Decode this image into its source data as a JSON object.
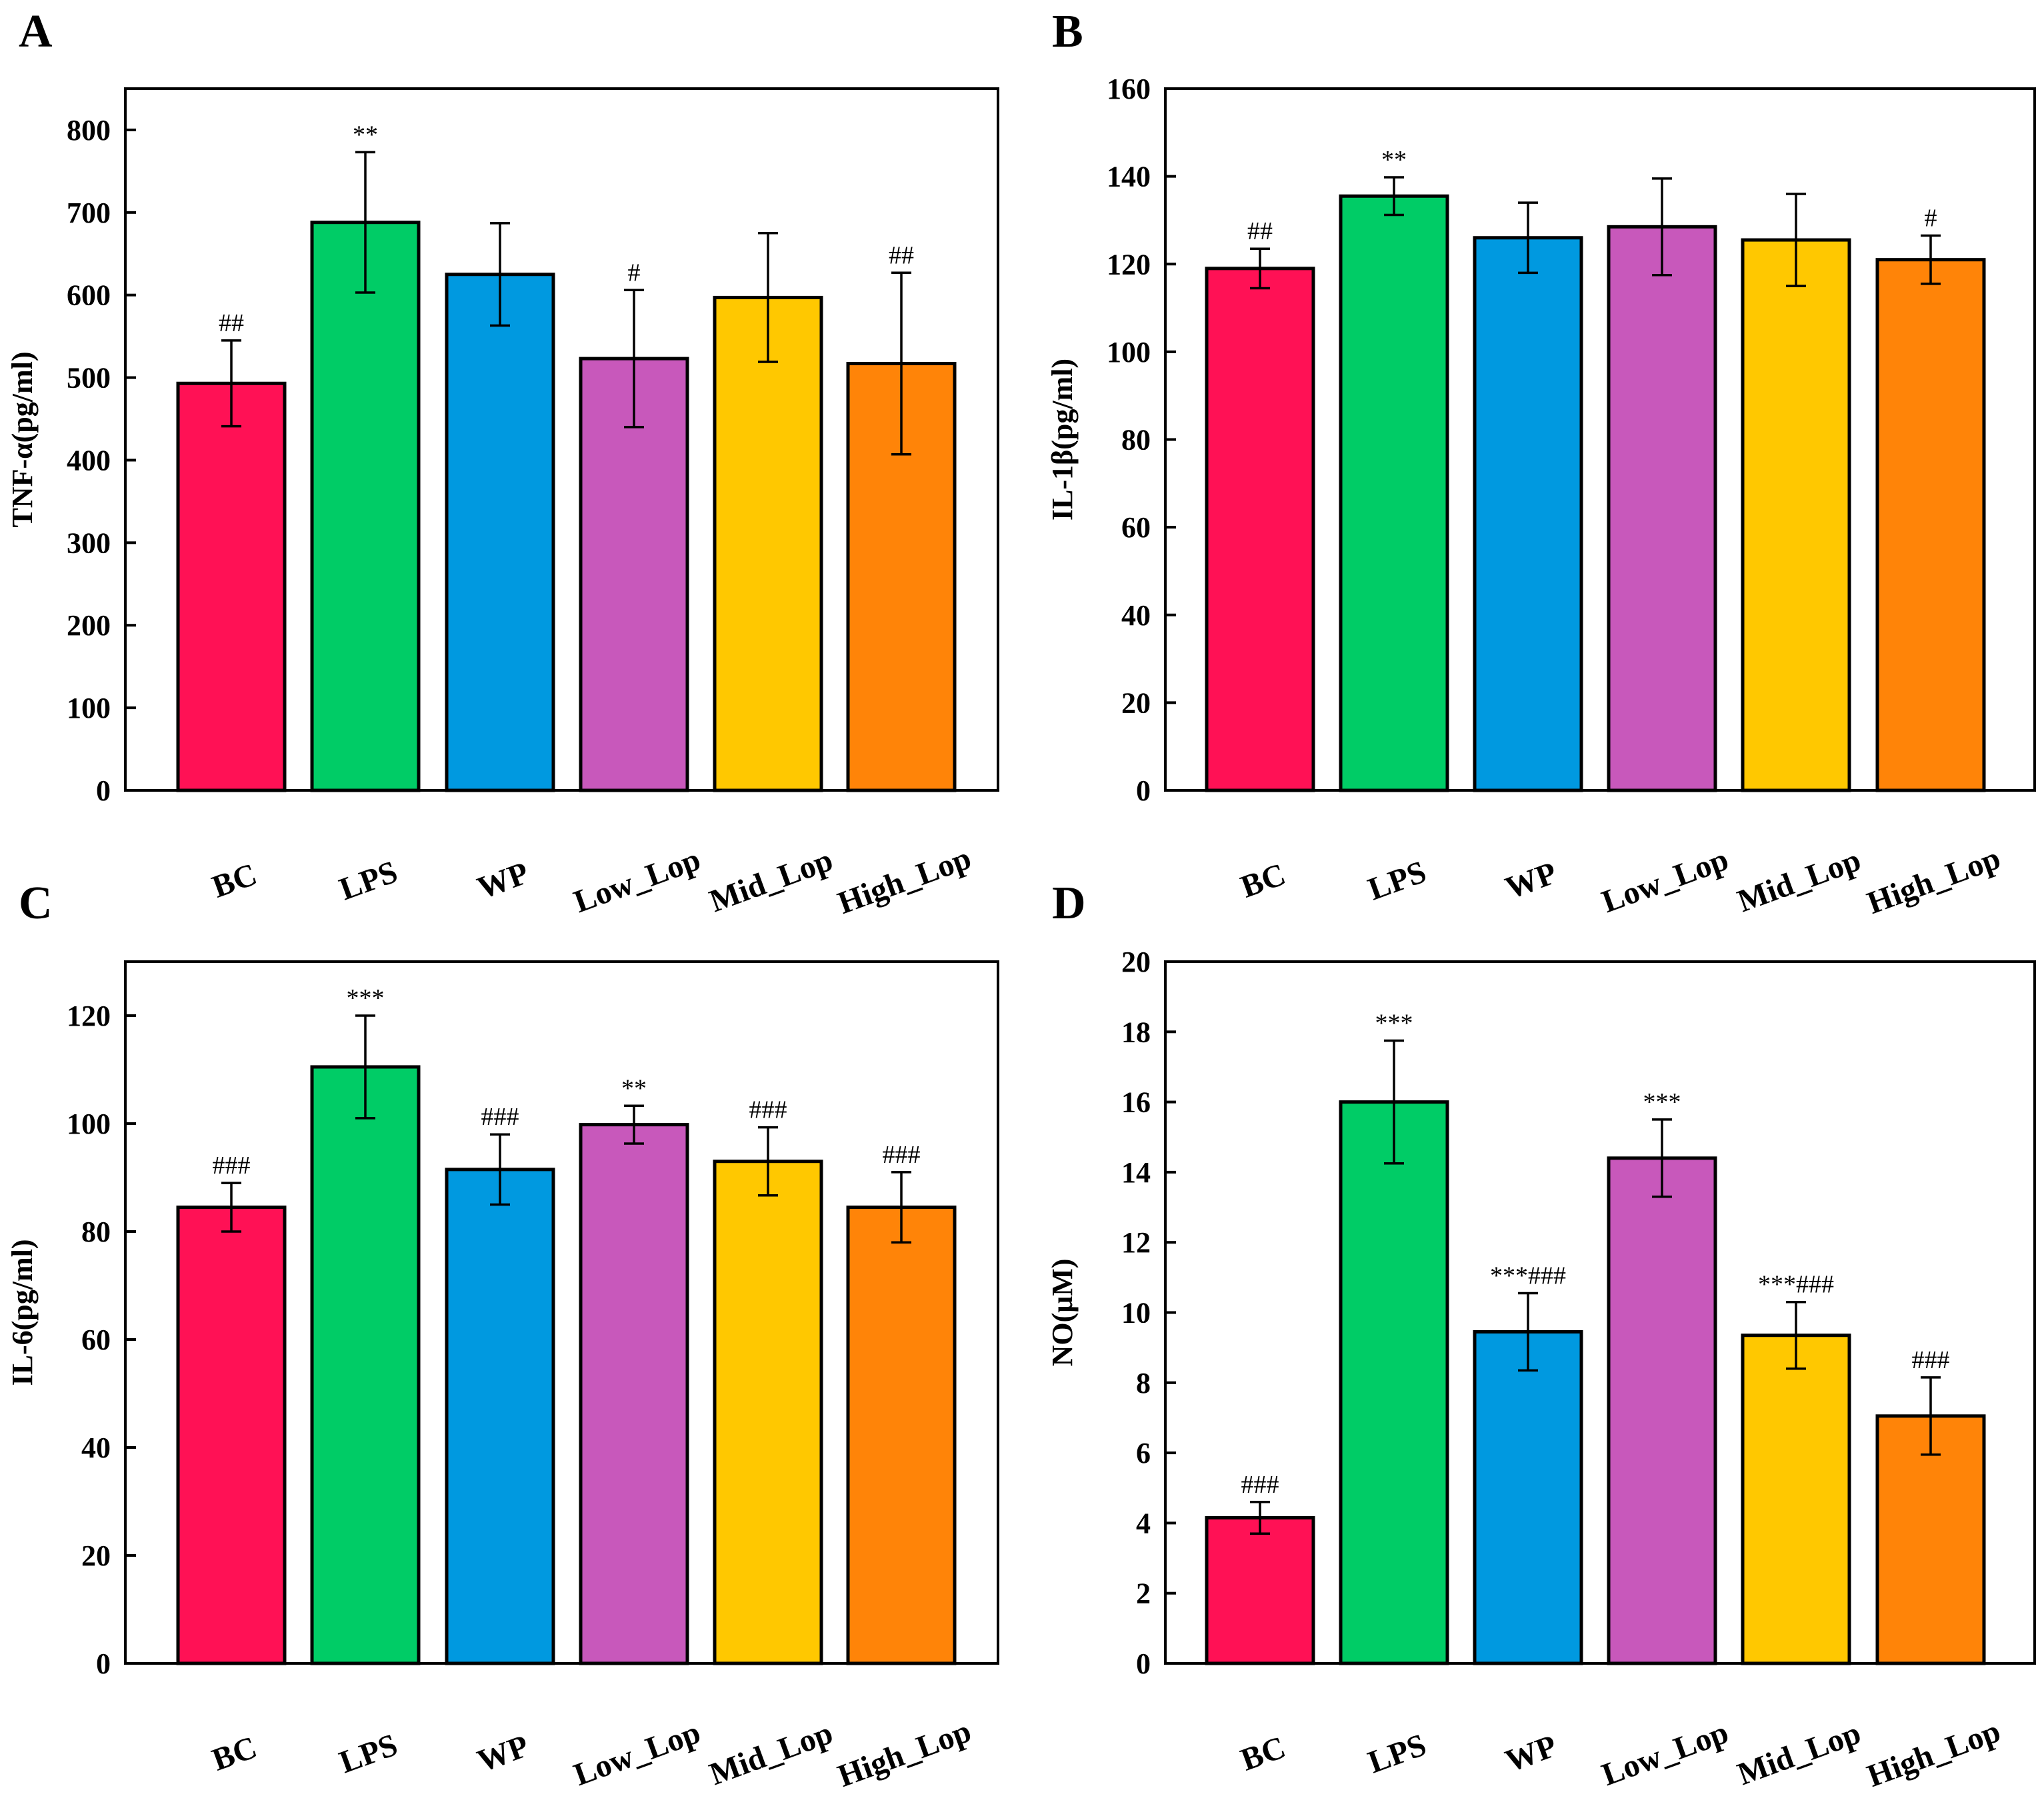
{
  "colors": [
    "#ff1155",
    "#00cc66",
    "#0099e0",
    "#c858bb",
    "#ffc800",
    "#ff8408"
  ],
  "categories": [
    "BC",
    "LPS",
    "WP",
    "Low_Lop",
    "Mid_Lop",
    "High_Lop"
  ],
  "chart_data": [
    {
      "type": "bar",
      "panel": "A",
      "title": "",
      "xlabel": "",
      "ylabel": "TNF-α(pg/ml)",
      "ylim": [
        0,
        850
      ],
      "yticks": [
        0,
        100,
        200,
        300,
        400,
        500,
        600,
        700,
        800
      ],
      "categories": [
        "BC",
        "LPS",
        "WP",
        "Low_Lop",
        "Mid_Lop",
        "High_Lop"
      ],
      "values": [
        493,
        688,
        625,
        523,
        597,
        517
      ],
      "errors": [
        52,
        85,
        62,
        83,
        78,
        110
      ],
      "annotations": [
        "##",
        "**",
        "",
        "#",
        "",
        "##"
      ]
    },
    {
      "type": "bar",
      "panel": "B",
      "title": "",
      "xlabel": "",
      "ylabel": "IL-1β(pg/ml)",
      "ylim": [
        0,
        160
      ],
      "yticks": [
        0,
        20,
        40,
        60,
        80,
        100,
        120,
        140,
        160
      ],
      "categories": [
        "BC",
        "LPS",
        "WP",
        "Low_Lop",
        "Mid_Lop",
        "High_Lop"
      ],
      "values": [
        119,
        135.5,
        126,
        128.5,
        125.5,
        121
      ],
      "errors": [
        4.5,
        4.3,
        8,
        11,
        10.5,
        5.5
      ],
      "annotations": [
        "##",
        "**",
        "",
        "",
        "",
        "#"
      ]
    },
    {
      "type": "bar",
      "panel": "C",
      "title": "",
      "xlabel": "",
      "ylabel": "IL-6(pg/ml)",
      "ylim": [
        0,
        130
      ],
      "yticks": [
        0,
        20,
        40,
        60,
        80,
        100,
        120
      ],
      "categories": [
        "BC",
        "LPS",
        "WP",
        "Low_Lop",
        "Mid_Lop",
        "High_Lop"
      ],
      "values": [
        84.5,
        110.5,
        91.5,
        99.8,
        93,
        84.5
      ],
      "errors": [
        4.5,
        9.5,
        6.5,
        3.5,
        6.3,
        6.5
      ],
      "annotations": [
        "###",
        "***",
        "###",
        "**",
        "###",
        "###"
      ]
    },
    {
      "type": "bar",
      "panel": "D",
      "title": "",
      "xlabel": "",
      "ylabel": "NO(μM)",
      "ylim": [
        0,
        20
      ],
      "yticks": [
        0,
        2,
        4,
        6,
        8,
        10,
        12,
        14,
        16,
        18,
        20
      ],
      "categories": [
        "BC",
        "LPS",
        "WP",
        "Low_Lop",
        "Mid_Lop",
        "High_Lop"
      ],
      "values": [
        4.15,
        16,
        9.45,
        14.4,
        9.35,
        7.05
      ],
      "errors": [
        0.45,
        1.75,
        1.1,
        1.1,
        0.95,
        1.1
      ],
      "annotations": [
        "###",
        "***",
        "***###",
        "***",
        "***###",
        "###"
      ]
    }
  ]
}
